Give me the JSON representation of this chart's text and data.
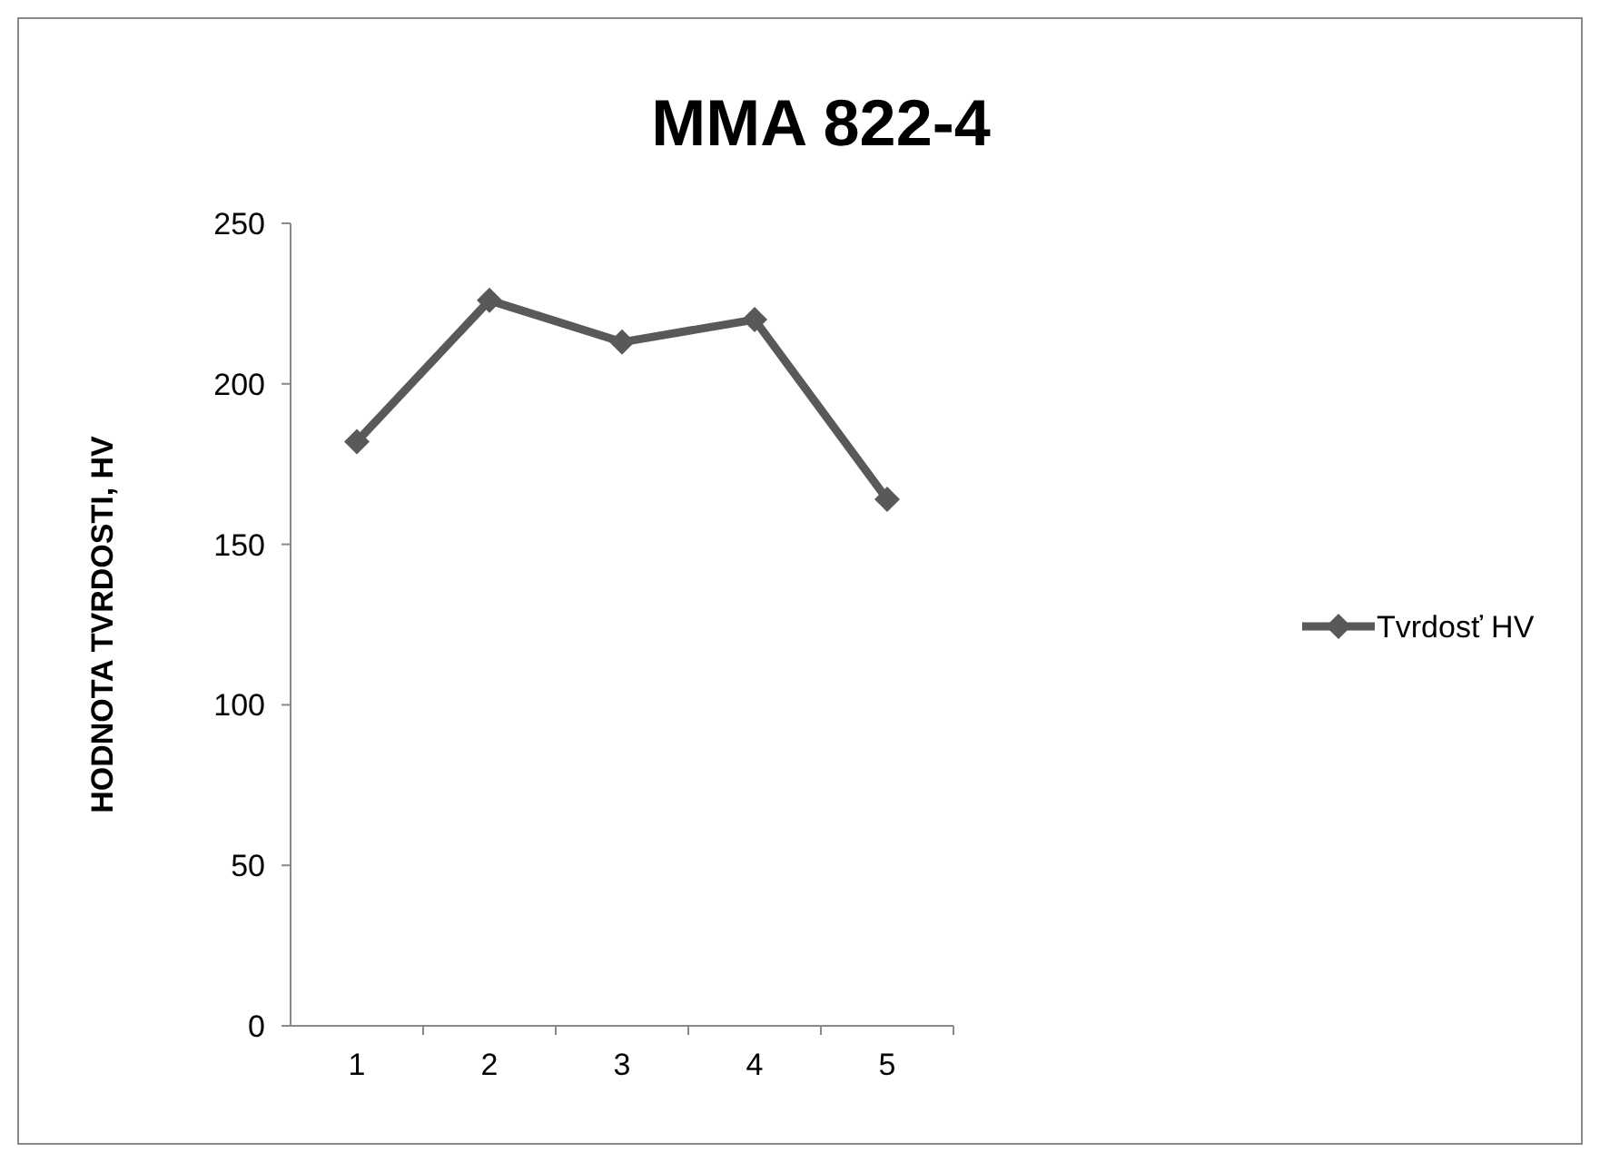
{
  "chart_data": {
    "type": "line",
    "title": "MMA 822-4",
    "ylabel": "HODNOTA TVRDOSTI, HV",
    "categories": [
      "1",
      "2",
      "3",
      "4",
      "5"
    ],
    "series": [
      {
        "name": "Tvrdosť HV",
        "color": "#595959",
        "values": [
          182,
          226,
          213,
          220,
          164
        ]
      }
    ],
    "ylim": [
      0,
      250
    ],
    "yticks": [
      0,
      50,
      100,
      150,
      200,
      250
    ],
    "grid": false,
    "legend": "right",
    "marker": "diamond",
    "line_style": "solid"
  }
}
